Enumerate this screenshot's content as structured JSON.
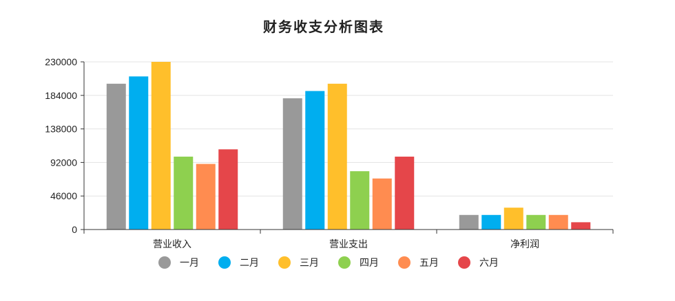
{
  "chart_data": {
    "type": "bar",
    "title": "财务收支分析图表",
    "categories": [
      "营业收入",
      "营业支出",
      "净利润"
    ],
    "ylim": [
      0,
      230000
    ],
    "yticks": [
      0,
      46000,
      92000,
      138000,
      184000,
      230000
    ],
    "grid": true,
    "legend_position": "bottom",
    "series": [
      {
        "name": "一月",
        "color": "#999999",
        "values": [
          200000,
          180000,
          20000
        ]
      },
      {
        "name": "二月",
        "color": "#00AEEF",
        "values": [
          210000,
          190000,
          20000
        ]
      },
      {
        "name": "三月",
        "color": "#FFBF2B",
        "values": [
          230000,
          200000,
          30000
        ]
      },
      {
        "name": "四月",
        "color": "#8ED04F",
        "values": [
          100000,
          80000,
          20000
        ]
      },
      {
        "name": "五月",
        "color": "#FF8C50",
        "values": [
          90000,
          70000,
          20000
        ]
      },
      {
        "name": "六月",
        "color": "#E5464A",
        "values": [
          110000,
          100000,
          10000
        ]
      }
    ]
  }
}
